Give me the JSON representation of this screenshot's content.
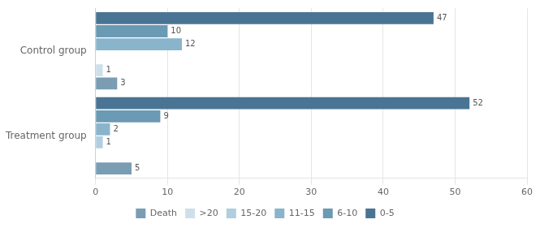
{
  "chart_data": {
    "type": "bar",
    "orientation": "horizontal",
    "categories": [
      "Treatment group",
      "Control group"
    ],
    "series": [
      {
        "name": "0-5",
        "color": "#4a7494",
        "values": [
          52,
          47
        ]
      },
      {
        "name": "6-10",
        "color": "#6a9ab4",
        "values": [
          9,
          10
        ]
      },
      {
        "name": "11-15",
        "color": "#8ab4cc",
        "values": [
          2,
          12
        ]
      },
      {
        "name": "15-20",
        "color": "#b0cedf",
        "values": [
          1,
          0
        ]
      },
      {
        "name": ">20",
        "color": "#cde0ea",
        "values": [
          0,
          1
        ]
      },
      {
        "name": "Death",
        "color": "#7a9db4",
        "values": [
          5,
          3
        ]
      }
    ],
    "xlim": [
      0,
      60
    ],
    "xticks": [
      0,
      10,
      20,
      30,
      40,
      50,
      60
    ],
    "grid": true,
    "legend": "bottom",
    "data_labels": true
  }
}
